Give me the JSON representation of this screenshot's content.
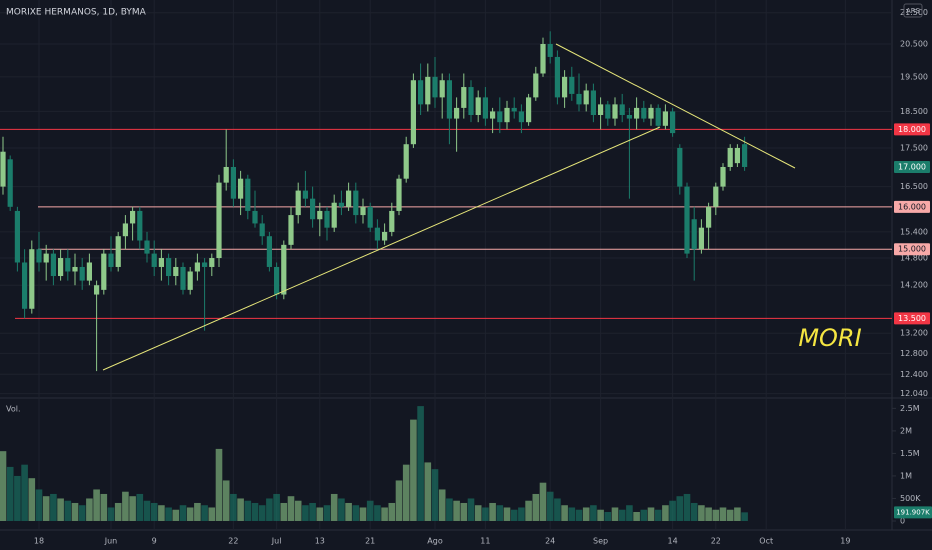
{
  "chart_data": {
    "type": "candlestick",
    "title": "MORIXE HERMANOS, 1D, BYMA",
    "currency": "ARS",
    "annotation": "MORI",
    "log": true,
    "grid": true,
    "up_color": "#8fc98a",
    "down_color": "#1b7d6b",
    "categories": [
      null,
      null,
      null,
      null,
      null,
      "18",
      null,
      null,
      null,
      null,
      null,
      null,
      null,
      null,
      null,
      "Jun",
      null,
      null,
      null,
      null,
      null,
      "9",
      null,
      null,
      null,
      null,
      null,
      null,
      null,
      null,
      null,
      null,
      "22",
      null,
      null,
      null,
      null,
      null,
      "Jul",
      null,
      null,
      null,
      null,
      null,
      "13",
      null,
      null,
      null,
      null,
      null,
      null,
      "21",
      null,
      null,
      null,
      null,
      null,
      null,
      null,
      null,
      "Ago",
      null,
      null,
      null,
      null,
      null,
      null,
      "11",
      null,
      null,
      null,
      null,
      null,
      null,
      null,
      null,
      "24",
      null,
      null,
      null,
      null,
      null,
      null,
      "Sep",
      null,
      null,
      null,
      null,
      null,
      null,
      null,
      null,
      null,
      "14",
      null,
      null,
      null,
      null,
      null,
      "22",
      null,
      null,
      null,
      null,
      null,
      null,
      "Oct",
      null,
      null,
      null,
      null,
      null,
      null,
      null,
      null,
      null,
      null,
      "19"
    ],
    "open": [
      16.5,
      17.2,
      15.9,
      14.7,
      13.7,
      15.0,
      14.7,
      14.9,
      14.4,
      14.8,
      14.5,
      14.6,
      14.3,
      14.0,
      14.1,
      14.9,
      14.6,
      15.3,
      15.6,
      15.9,
      15.2,
      14.9,
      14.6,
      14.8,
      14.4,
      14.6,
      14.1,
      14.5,
      14.7,
      14.6,
      14.8,
      16.6,
      17.0,
      16.2,
      16.7,
      15.9,
      15.6,
      15.3,
      14.6,
      14.0,
      15.1,
      15.8,
      16.4,
      16.2,
      15.7,
      15.9,
      15.5,
      16.1,
      16.0,
      16.4,
      15.8,
      16.0,
      15.5,
      15.2,
      15.4,
      15.9,
      16.7,
      17.6,
      19.4,
      18.7,
      19.5,
      18.9,
      19.4,
      18.3,
      18.6,
      19.2,
      18.4,
      18.9,
      18.3,
      18.5,
      18.2,
      18.6,
      18.5,
      18.2,
      18.9,
      19.6,
      20.5,
      20.1,
      18.9,
      19.5,
      19.0,
      18.7,
      19.1,
      18.4,
      18.7,
      18.3,
      18.7,
      18.4,
      18.3,
      18.6,
      18.3,
      18.6,
      18.1,
      18.5,
      17.5,
      16.5,
      15.7,
      15.0,
      15.5,
      16.0,
      16.5,
      17.0,
      17.1,
      17.6,
      null,
      null,
      null,
      null,
      null,
      null,
      null,
      null,
      null,
      null,
      null,
      null,
      null,
      null
    ],
    "high": [
      17.8,
      17.3,
      16.0,
      15.0,
      15.2,
      15.4,
      15.1,
      15.0,
      15.0,
      15.0,
      14.9,
      14.8,
      14.9,
      14.3,
      15.0,
      15.3,
      15.4,
      15.8,
      16.0,
      16.0,
      15.4,
      15.2,
      15.0,
      14.9,
      14.8,
      14.7,
      14.6,
      14.9,
      14.8,
      14.9,
      16.8,
      18.0,
      17.2,
      16.9,
      16.8,
      16.4,
      15.8,
      15.4,
      14.7,
      15.2,
      16.0,
      16.6,
      16.9,
      16.5,
      16.1,
      16.0,
      16.3,
      16.4,
      16.6,
      16.6,
      16.2,
      16.1,
      15.7,
      15.6,
      16.1,
      16.8,
      17.8,
      19.6,
      19.9,
      19.9,
      20.1,
      19.6,
      19.6,
      18.9,
      19.6,
      19.4,
      19.1,
      19.2,
      18.6,
      18.9,
      18.8,
      18.9,
      18.7,
      19.0,
      19.8,
      20.7,
      20.9,
      20.3,
      19.7,
      19.8,
      19.6,
      19.3,
      19.3,
      18.9,
      18.8,
      18.9,
      19.0,
      18.6,
      18.9,
      18.8,
      18.7,
      18.7,
      18.7,
      18.6,
      17.6,
      16.6,
      16.0,
      15.7,
      16.1,
      16.6,
      17.1,
      17.6,
      17.6,
      17.8,
      null,
      null,
      null,
      null,
      null,
      null,
      null,
      null,
      null,
      null,
      null,
      null,
      null,
      null
    ],
    "low": [
      16.3,
      15.9,
      14.5,
      13.5,
      13.6,
      14.5,
      14.3,
      14.2,
      14.3,
      14.3,
      14.2,
      14.1,
      14.2,
      12.46,
      14.0,
      14.5,
      14.5,
      15.0,
      15.2,
      15.0,
      14.7,
      14.4,
      14.3,
      14.2,
      14.2,
      14.0,
      14.0,
      14.3,
      13.25,
      14.4,
      14.6,
      16.4,
      16.0,
      15.8,
      15.7,
      15.5,
      15.1,
      14.5,
      13.9,
      13.9,
      15.0,
      15.6,
      16.0,
      15.5,
      15.3,
      15.2,
      15.4,
      15.8,
      15.9,
      15.6,
      15.6,
      15.4,
      15.0,
      15.1,
      15.3,
      15.8,
      16.6,
      17.5,
      18.4,
      18.5,
      18.6,
      18.3,
      17.6,
      17.4,
      18.3,
      18.2,
      18.2,
      18.1,
      17.9,
      17.9,
      18.0,
      18.3,
      17.9,
      18.1,
      18.8,
      19.5,
      19.9,
      18.7,
      18.6,
      18.8,
      18.5,
      18.5,
      18.2,
      18.0,
      18.1,
      18.1,
      18.2,
      16.2,
      18.0,
      18.2,
      18.1,
      18.0,
      18.0,
      17.8,
      16.3,
      14.8,
      14.3,
      14.9,
      15.0,
      15.8,
      16.4,
      16.9,
      17.0,
      16.9,
      null,
      null,
      null,
      null,
      null,
      null,
      null,
      null,
      null,
      null,
      null,
      null,
      null,
      null
    ],
    "close": [
      17.4,
      16.0,
      14.7,
      13.7,
      15.0,
      14.7,
      14.9,
      14.4,
      14.8,
      14.5,
      14.6,
      14.3,
      14.7,
      14.2,
      14.9,
      14.6,
      15.3,
      15.6,
      15.9,
      15.2,
      14.9,
      14.6,
      14.8,
      14.4,
      14.6,
      14.1,
      14.5,
      14.7,
      14.6,
      14.8,
      16.6,
      17.0,
      16.2,
      16.7,
      15.9,
      15.6,
      15.3,
      14.6,
      14.0,
      15.1,
      15.8,
      16.4,
      16.2,
      15.7,
      15.9,
      15.5,
      16.1,
      16.0,
      16.4,
      15.8,
      16.0,
      15.5,
      15.2,
      15.4,
      15.9,
      16.7,
      17.6,
      19.4,
      18.7,
      19.5,
      18.9,
      19.4,
      18.3,
      18.6,
      19.2,
      18.4,
      18.9,
      18.3,
      18.5,
      18.2,
      18.6,
      18.5,
      18.2,
      18.9,
      19.6,
      20.5,
      20.1,
      18.9,
      19.5,
      19.0,
      18.7,
      19.1,
      18.4,
      18.7,
      18.3,
      18.7,
      18.4,
      18.3,
      18.6,
      18.3,
      18.6,
      18.1,
      18.5,
      17.9,
      16.5,
      14.9,
      15.0,
      15.5,
      16.0,
      16.5,
      17.0,
      17.5,
      17.5,
      17.0,
      null,
      null,
      null,
      null,
      null,
      null,
      null,
      null,
      null,
      null,
      null,
      null,
      null,
      null
    ],
    "last_label": "17.000",
    "ylim": [
      11.96,
      21.92
    ],
    "yticks": [
      {
        "value": 21.5,
        "label": "21.500"
      },
      {
        "value": 20.5,
        "label": "20.500"
      },
      {
        "value": 19.5,
        "label": "19.500"
      },
      {
        "value": 18.5,
        "label": "18.500"
      },
      {
        "value": 17.5,
        "label": "17.500"
      },
      {
        "value": 16.5,
        "label": "16.500"
      },
      {
        "value": 15.4,
        "label": "15.400"
      },
      {
        "value": 14.8,
        "label": "14.800"
      },
      {
        "value": 14.2,
        "label": "14.200"
      },
      {
        "value": 13.2,
        "label": "13.200"
      },
      {
        "value": 12.8,
        "label": "12.800"
      },
      {
        "value": 12.4,
        "label": "12.400"
      },
      {
        "value": 12.04,
        "label": "12.040"
      }
    ],
    "levels": [
      {
        "value": 18,
        "label": "18.000",
        "color": "#f23645"
      },
      {
        "value": 16,
        "label": "16.000",
        "color": "#f7a9a8"
      },
      {
        "value": 15,
        "label": "15.000",
        "color": "#f7a9a8"
      },
      {
        "value": 13.5,
        "label": "13.500",
        "color": "#f23645"
      }
    ],
    "volume": {
      "label": "Vol.",
      "values": [
        1550000,
        1200000,
        1000000,
        1250000,
        950000,
        700000,
        550000,
        600000,
        500000,
        450000,
        400000,
        350000,
        500000,
        700000,
        600000,
        300000,
        400000,
        650000,
        550000,
        600000,
        450000,
        400000,
        350000,
        300000,
        250000,
        350000,
        300000,
        400000,
        350000,
        300000,
        1600000,
        900000,
        600000,
        500000,
        450000,
        400000,
        350000,
        500000,
        600000,
        400000,
        550000,
        450000,
        350000,
        400000,
        300000,
        350000,
        600000,
        500000,
        400000,
        350000,
        300000,
        450000,
        350000,
        300000,
        400000,
        900000,
        1250000,
        2250000,
        2550000,
        1300000,
        1150000,
        700000,
        500000,
        450000,
        400000,
        500000,
        350000,
        300000,
        400000,
        350000,
        300000,
        250000,
        300000,
        450000,
        600000,
        850000,
        650000,
        500000,
        350000,
        300000,
        250000,
        300000,
        350000,
        250000,
        200000,
        300000,
        250000,
        350000,
        200000,
        250000,
        300000,
        250000,
        350000,
        450000,
        550000,
        600000,
        400000,
        350000,
        300000,
        250000,
        300000,
        250000,
        300000,
        191907,
        null,
        null,
        null,
        null,
        null,
        null,
        null,
        null,
        null,
        null,
        null,
        null,
        null,
        null
      ],
      "last_label": "191.907K",
      "ylim": [
        -200000,
        2730000
      ],
      "yticks": [
        {
          "value": 2500000,
          "label": "2.5M"
        },
        {
          "value": 2000000,
          "label": "2M"
        },
        {
          "value": 1500000,
          "label": "1.5M"
        },
        {
          "value": 1000000,
          "label": "1M"
        },
        {
          "value": 500000,
          "label": "500K"
        },
        0
      ]
    }
  }
}
